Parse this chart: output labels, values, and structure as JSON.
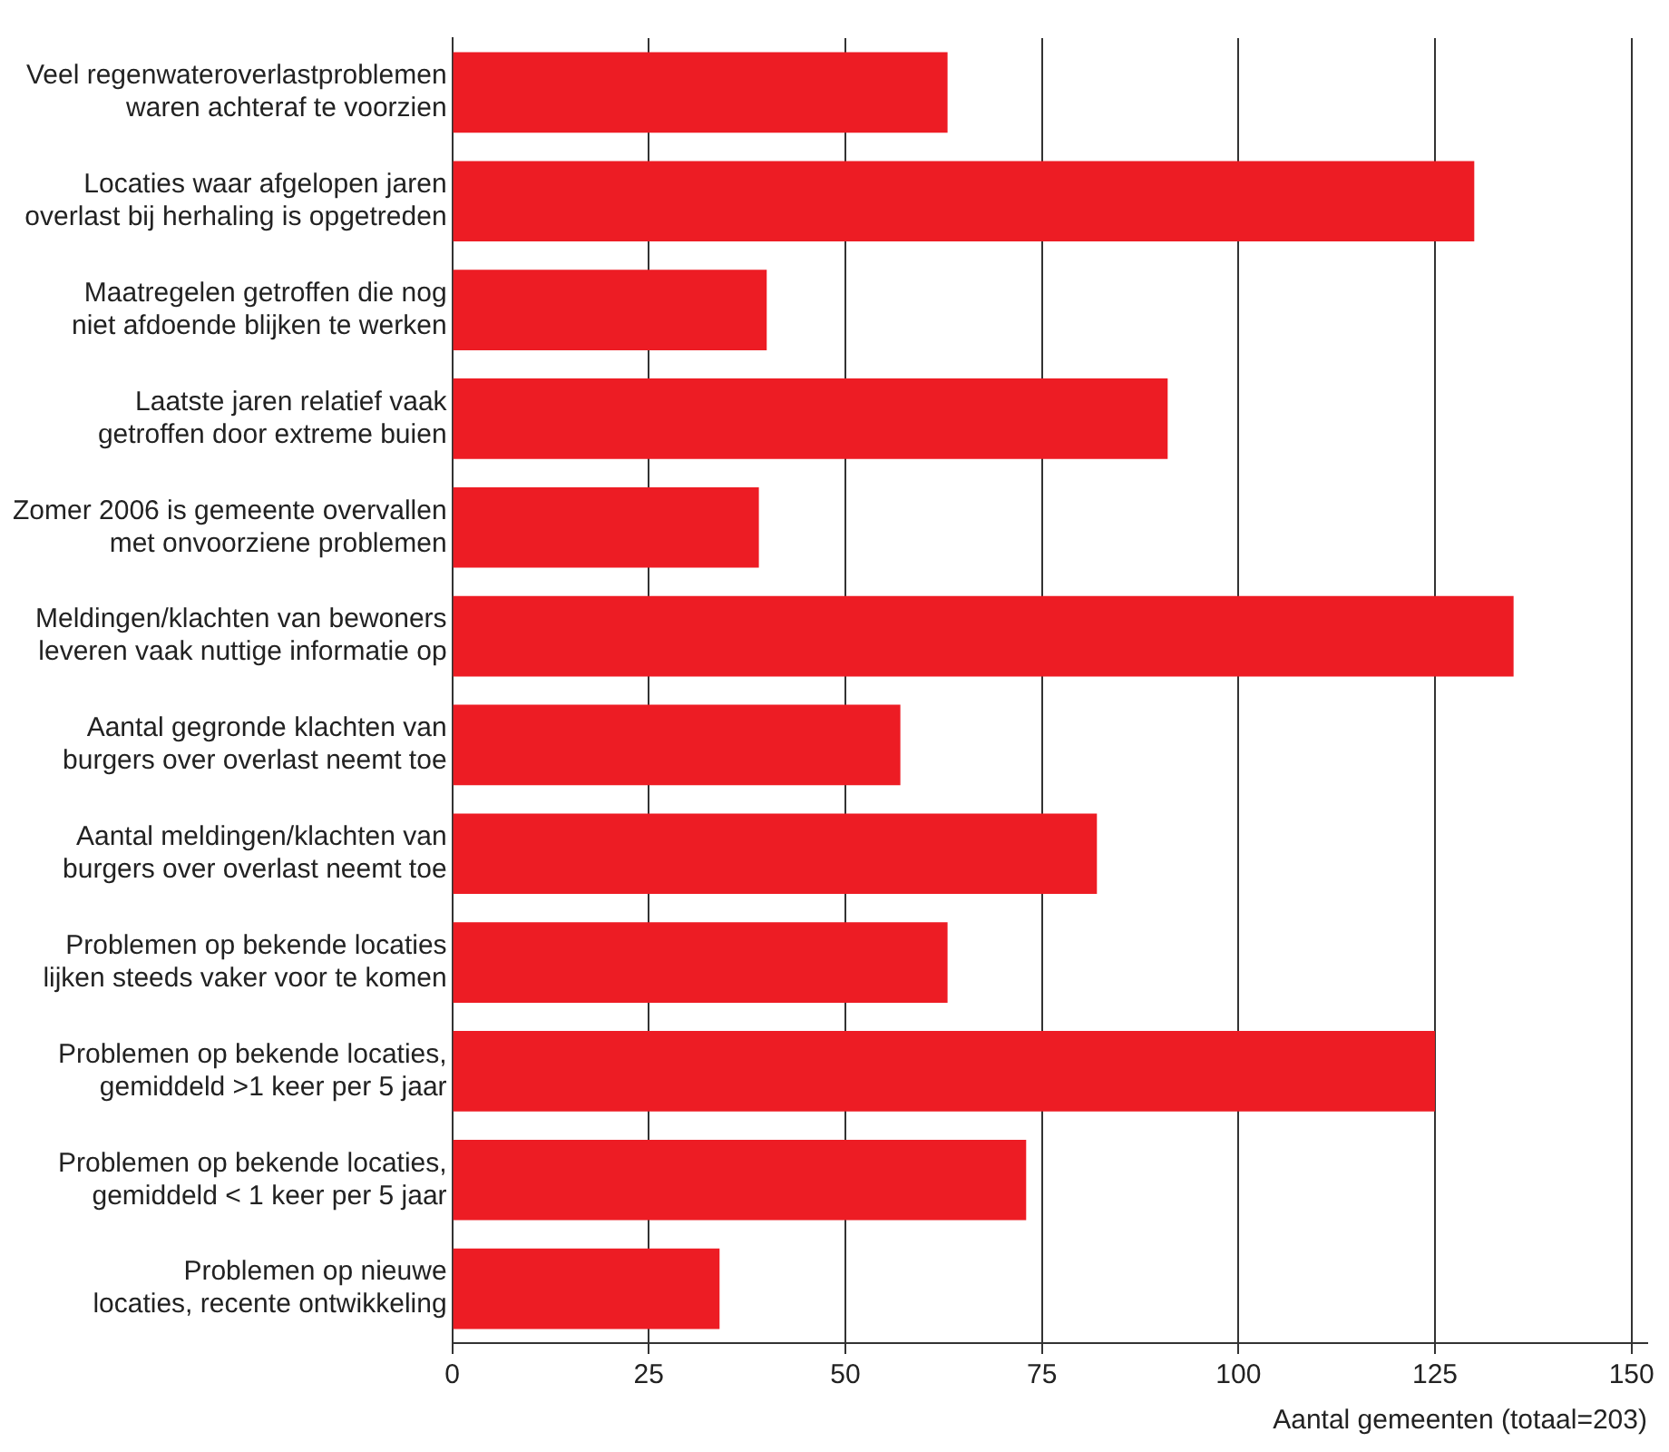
{
  "chart_data": {
    "type": "bar",
    "orientation": "horizontal",
    "xlabel": "Aantal gemeenten (totaal=203)",
    "categories": [
      "Veel regenwateroverlastproblemen waren achteraf te voorzien",
      "Locaties waar afgelopen jaren overlast bij herhaling is opgetreden",
      "Maatregelen getroffen die nog niet afdoende blijken te werken",
      "Laatste jaren relatief vaak getroffen door extreme buien",
      "Zomer 2006 is gemeente overvallen met onvoorziene problemen",
      "Meldingen/klachten van bewoners leveren vaak nuttige informatie op",
      "Aantal gegronde klachten van burgers over overlast neemt toe",
      "Aantal meldingen/klachten van burgers over overlast neemt toe",
      "Problemen op bekende locaties lijken steeds vaker voor te komen",
      "Problemen op bekende locaties, gemiddeld >1 keer per 5 jaar",
      "Problemen op bekende locaties, gemiddeld < 1 keer per 5 jaar",
      "Problemen op nieuwe locaties, recente ontwikkeling"
    ],
    "values": [
      63,
      130,
      40,
      91,
      39,
      135,
      57,
      82,
      63,
      125,
      73,
      34
    ],
    "color": "#ed1c24",
    "xlim": [
      0,
      152
    ],
    "xticks": [
      0,
      25,
      50,
      75,
      100,
      125,
      150
    ],
    "grid": "x",
    "legend": false
  }
}
